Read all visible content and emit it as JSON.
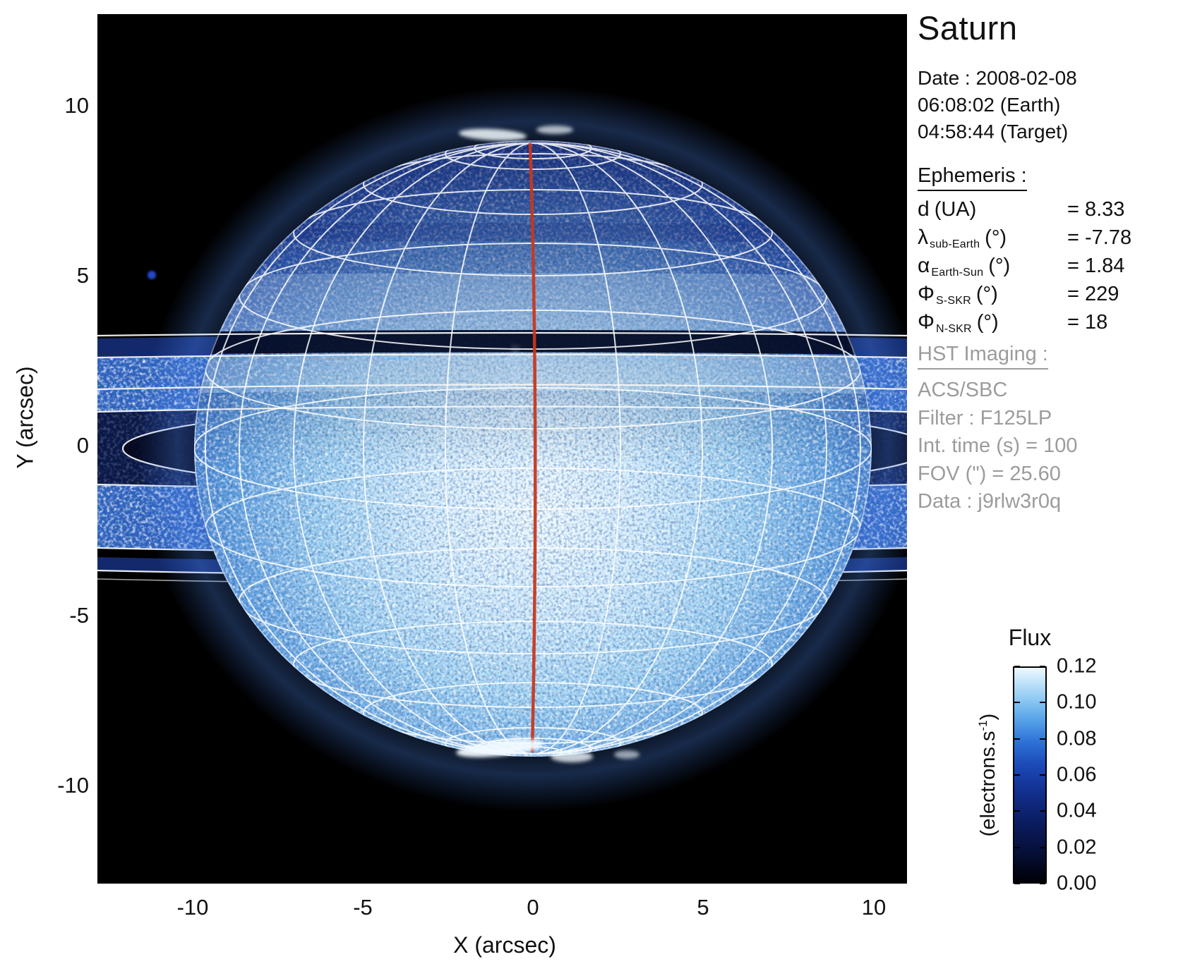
{
  "title": "Saturn",
  "date_block": {
    "line1": "Date : 2008-02-08",
    "line2": "06:08:02 (Earth)",
    "line3": "04:58:44 (Target)"
  },
  "ephemeris": {
    "heading": "Ephemeris :",
    "rows": [
      {
        "symbol": "d",
        "subscript": "",
        "unit": "(UA)",
        "value": "= 8.33"
      },
      {
        "symbol": "λ",
        "subscript": "sub-Earth",
        "unit": "(°)",
        "value": "= -7.78"
      },
      {
        "symbol": "α",
        "subscript": "Earth-Sun",
        "unit": "(°)",
        "value": "= 1.84"
      },
      {
        "symbol": "Φ",
        "subscript": "S-SKR",
        "unit": "(°)",
        "value": "= 229"
      },
      {
        "symbol": "Φ",
        "subscript": "N-SKR",
        "unit": "(°)",
        "value": "= 18"
      }
    ]
  },
  "hst_imaging": {
    "heading": "HST Imaging :",
    "lines": [
      "ACS/SBC",
      "Filter : F125LP",
      "Int. time (s) = 100",
      "FOV (\") = 25.60",
      "Data : j9rlw3r0q"
    ]
  },
  "axes": {
    "x_label": "X (arcsec)",
    "y_label": "Y (arcsec)",
    "x_ticks": [
      "-10",
      "-5",
      "0",
      "5",
      "10"
    ],
    "y_ticks": [
      "10",
      "5",
      "0",
      "-5",
      "-10"
    ]
  },
  "colorbar": {
    "title": "Flux",
    "unit_prefix": "(electrons.s",
    "unit_sup": "-1",
    "unit_suffix": ")",
    "tick_labels": [
      "0.12",
      "0.10",
      "0.08",
      "0.06",
      "0.04",
      "0.02",
      "0.00"
    ]
  },
  "colors": {
    "background": "#ffffff",
    "plot_background": "#000000",
    "grid_lines": "#ffffff",
    "central_meridian": "#c8371b",
    "secondary_text": "#9c9c9c",
    "disk_bright": "#eef9ff",
    "disk_mid": "#3a7ad0",
    "disk_dark": "#081540"
  },
  "chart_data": {
    "type": "heatmap",
    "title": "Saturn",
    "xlabel": "X (arcsec)",
    "ylabel": "Y (arcsec)",
    "x_ticks": [
      -10,
      -5,
      0,
      5,
      10
    ],
    "y_ticks": [
      10,
      5,
      0,
      -5,
      -10
    ],
    "xlim": [
      -12.8,
      11.0
    ],
    "ylim": [
      -12.8,
      12.7
    ],
    "grid": false,
    "colorbar": {
      "label": "Flux",
      "unit": "(electrons.s-1)",
      "min": 0.0,
      "max": 0.12,
      "ticks": [
        0.12,
        0.1,
        0.08,
        0.06,
        0.04,
        0.02,
        0.0
      ],
      "colormap": "black-navy-blue-white"
    },
    "content": {
      "target": "Saturn",
      "disk": {
        "center_arcsec": [
          0,
          0.4
        ],
        "equatorial_radius_arcsec": 9.9,
        "polar_radius_arcsec": 9.0,
        "texture": "speckled UV flux, brightest south-central region"
      },
      "overlays": [
        "white planetocentric latitude/longitude grid (~15 deg spacing)",
        "red central meridian line from north to south pole",
        "white ring-boundary ellipses spanning full image width",
        "dark ring band crossing disk near y = +3 arcsec",
        "bright ring ansae east and west of disk",
        "auroral bright patches at both poles",
        "faint point source near (-11.5, 5.5) arcsec"
      ],
      "ephemeris": {
        "d_UA": 8.33,
        "lambda_subEarth_deg": -7.78,
        "alpha_EarthSun_deg": 1.84,
        "phi_S_SKR_deg": 229,
        "phi_N_SKR_deg": 18
      },
      "instrument": {
        "camera": "ACS/SBC",
        "filter": "F125LP",
        "int_time_s": 100,
        "fov_arcsec": 25.6,
        "dataset": "j9rlw3r0q"
      }
    }
  }
}
